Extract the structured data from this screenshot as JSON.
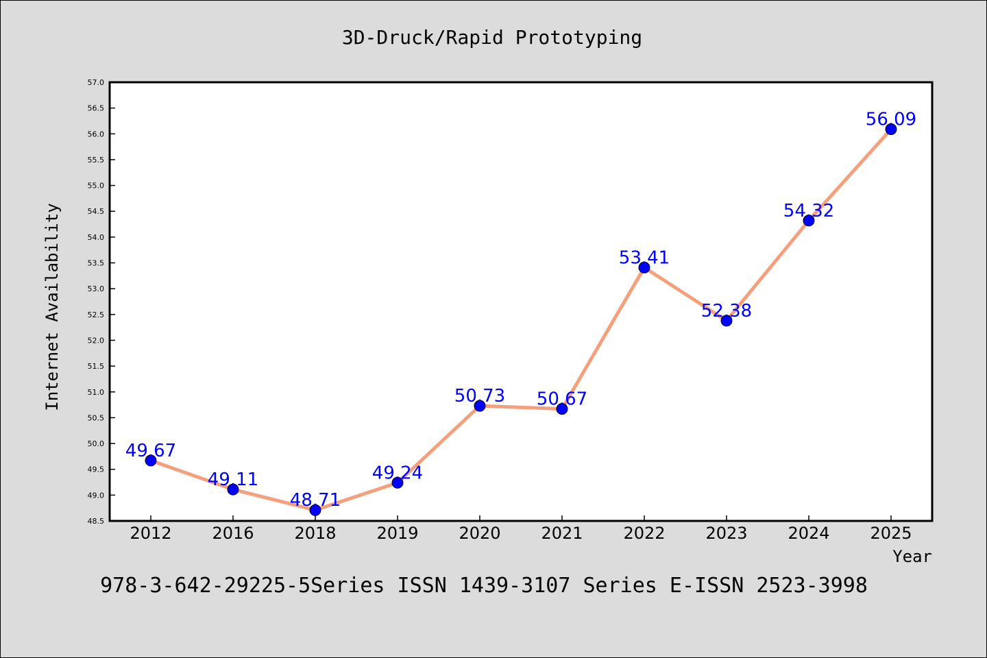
{
  "chart_data": {
    "type": "line",
    "title": "3D-Druck/Rapid Prototyping",
    "xlabel": "Year",
    "ylabel": "Internet Availability",
    "caption": "978-3-642-29225-5Series ISSN 1439-3107 Series E-ISSN 2523-3998",
    "categories": [
      "2012",
      "2016",
      "2018",
      "2019",
      "2020",
      "2021",
      "2022",
      "2023",
      "2024",
      "2025"
    ],
    "series": [
      {
        "values": [
          49.67,
          49.11,
          48.71,
          49.24,
          50.73,
          50.67,
          53.41,
          52.38,
          54.32,
          56.09
        ],
        "labels": [
          "49.67",
          "49.11",
          "48.71",
          "49.24",
          "50.73",
          "50.67",
          "53.41",
          "52.38",
          "54.32",
          "56.09"
        ]
      }
    ],
    "ylim": [
      48.5,
      57.0
    ],
    "yticks": [
      "48.5",
      "49.0",
      "49.5",
      "50.0",
      "50.5",
      "51.0",
      "51.5",
      "52.0",
      "52.5",
      "53.0",
      "53.5",
      "54.0",
      "54.5",
      "55.0",
      "55.5",
      "56.0",
      "56.5",
      "57.0"
    ],
    "grid": false,
    "colors": {
      "background": "#dcdcdc",
      "plot_background": "#ffffff",
      "line": "#f4a07c",
      "marker": "#0000ff",
      "label": "#0000ff",
      "text": "#000000"
    }
  }
}
